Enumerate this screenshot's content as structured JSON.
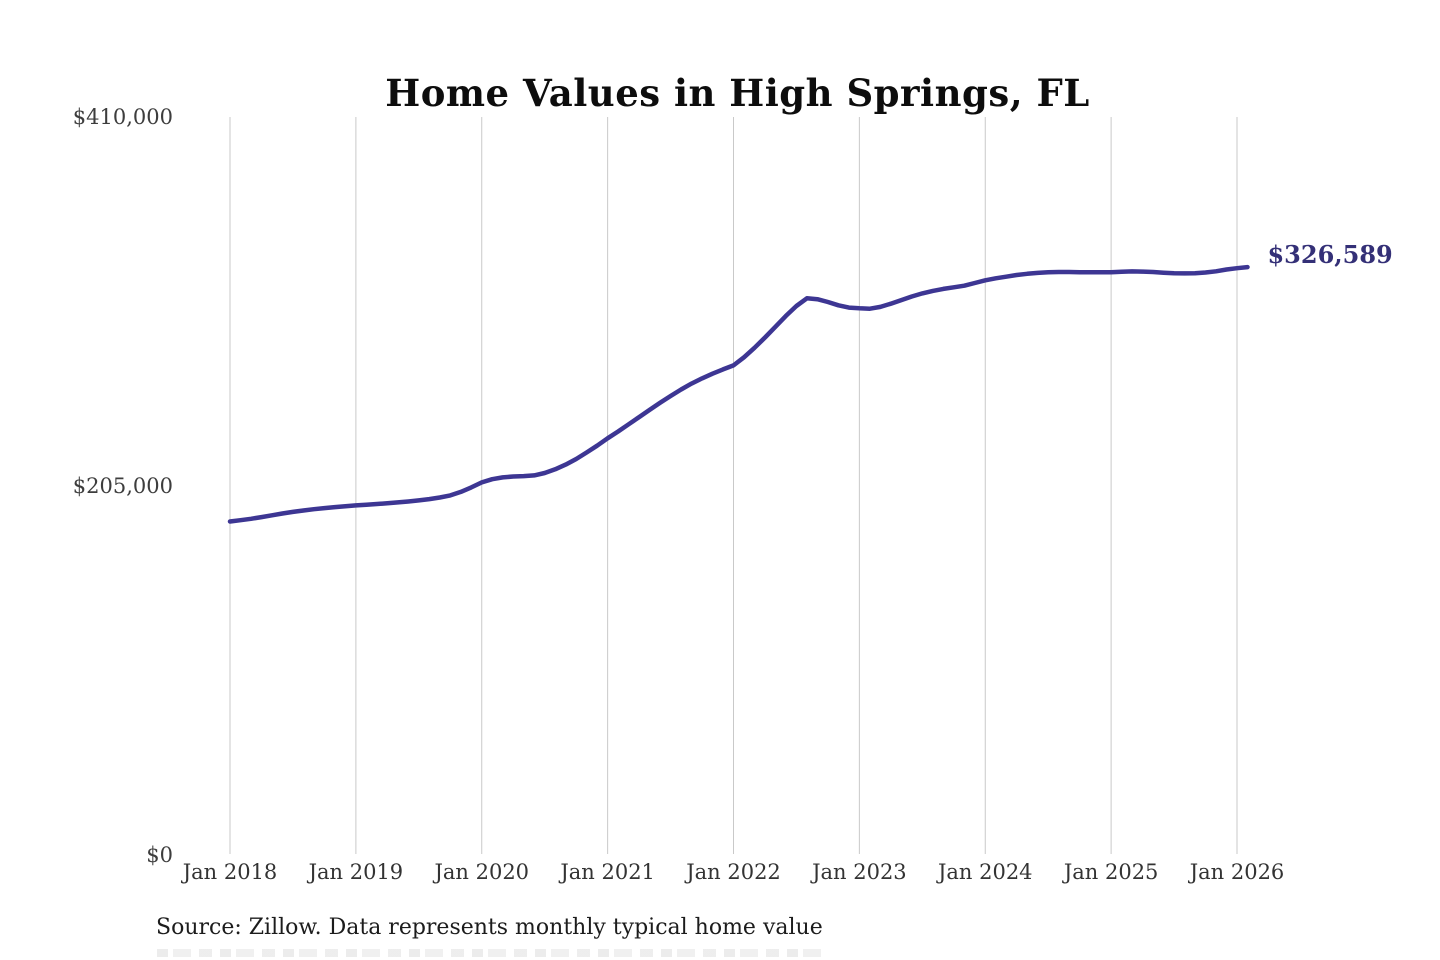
{
  "title": "Home Values in High Springs, FL",
  "source_note": "Source: Zillow. Data represents monthly typical home value",
  "latest_value_label": "$326,589",
  "colors": {
    "line": "#3d3693",
    "end_label": "#343077",
    "grid": "#c9c9c9",
    "y_axis_text": "#3d3d3d",
    "x_axis_text": "#333333"
  },
  "chart_data": {
    "type": "line",
    "title": "Home Values in High Springs, FL",
    "xlabel": "",
    "ylabel": "",
    "ylim": [
      0,
      410000
    ],
    "grid": "vertical-only",
    "legend": "none",
    "x_start": "2018-01",
    "x_frequency": "monthly",
    "x_tick_labels": [
      "Jan 2018",
      "Jan 2019",
      "Jan 2020",
      "Jan 2021",
      "Jan 2022",
      "Jan 2023",
      "Jan 2024",
      "Jan 2025",
      "Jan 2026"
    ],
    "y_ticks": [
      {
        "label": "$0",
        "value": 0
      },
      {
        "label": "$205,000",
        "value": 205000
      },
      {
        "label": "$410,000",
        "value": 410000
      }
    ],
    "annotation": {
      "text": "$326,589",
      "value": 326589,
      "position": "line-end"
    },
    "series": [
      {
        "name": "Monthly typical home value",
        "values": [
          185300,
          186000,
          186800,
          187700,
          188700,
          189700,
          190600,
          191400,
          192100,
          192700,
          193300,
          193800,
          194200,
          194600,
          195000,
          195400,
          195900,
          196400,
          197000,
          197700,
          198600,
          199800,
          201700,
          204200,
          207000,
          208800,
          209800,
          210300,
          210500,
          210900,
          212200,
          214300,
          216900,
          220000,
          223600,
          227400,
          231500,
          235300,
          239300,
          243300,
          247300,
          251200,
          255000,
          258600,
          261900,
          264800,
          267400,
          269800,
          272000,
          276500,
          281800,
          287500,
          293500,
          299500,
          305000,
          309300,
          308800,
          307200,
          305400,
          304100,
          303700,
          303500,
          304500,
          306300,
          308300,
          310300,
          312000,
          313400,
          314500,
          315400,
          316300,
          317800,
          319300,
          320400,
          321300,
          322200,
          322900,
          323400,
          323700,
          323900,
          323900,
          323800,
          323700,
          323700,
          323800,
          324000,
          324200,
          324100,
          323900,
          323500,
          323200,
          323100,
          323200,
          323600,
          324300,
          325300,
          326000,
          326589
        ]
      }
    ]
  }
}
